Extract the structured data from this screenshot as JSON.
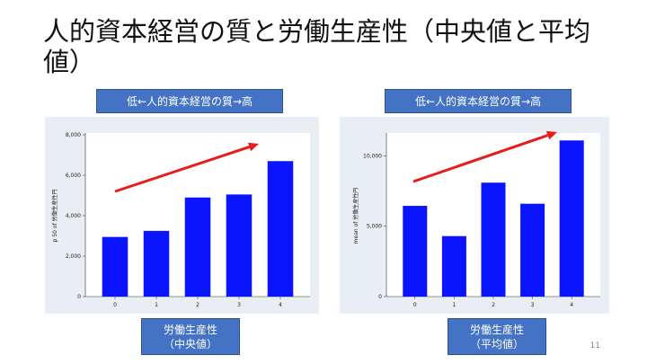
{
  "slide": {
    "title": "人的資本経営の質と労働生産性（中央値と平均値）",
    "page_number": "11"
  },
  "labels": {
    "left_top": "低←人的資本経営の質→高",
    "right_top": "低←人的資本経営の質→高",
    "left_bottom_line1": "労働生産性",
    "left_bottom_line2": "（中央値）",
    "right_bottom_line1": "労働生産性",
    "right_bottom_line2": "（平均値）"
  },
  "colors": {
    "bar": "#0a14ff",
    "arrow": "#e81c1c",
    "label_box": "#4472c4",
    "panel": "#e9eef4"
  },
  "chart_data": [
    {
      "type": "bar",
      "categories": [
        "0",
        "1",
        "2",
        "3",
        "4"
      ],
      "values": [
        2950,
        3250,
        4900,
        5050,
        6700
      ],
      "ylabel": "p 50 of 労働生産性円",
      "ylim": [
        0,
        8000
      ],
      "yticks": [
        0,
        2000,
        4000,
        6000,
        8000
      ],
      "ytick_labels": [
        "0",
        "2,000",
        "4,000",
        "6,000",
        "8,000"
      ],
      "annotation": "upward red arrow"
    },
    {
      "type": "bar",
      "categories": [
        "0",
        "1",
        "2",
        "3",
        "4"
      ],
      "values": [
        6450,
        4300,
        8100,
        6600,
        11100
      ],
      "ylabel": "mean of 労働生産性円",
      "ylim": [
        0,
        11500
      ],
      "yticks": [
        0,
        5000,
        10000
      ],
      "ytick_labels": [
        "0",
        "5,000",
        "10,000"
      ],
      "annotation": "upward red arrow"
    }
  ]
}
